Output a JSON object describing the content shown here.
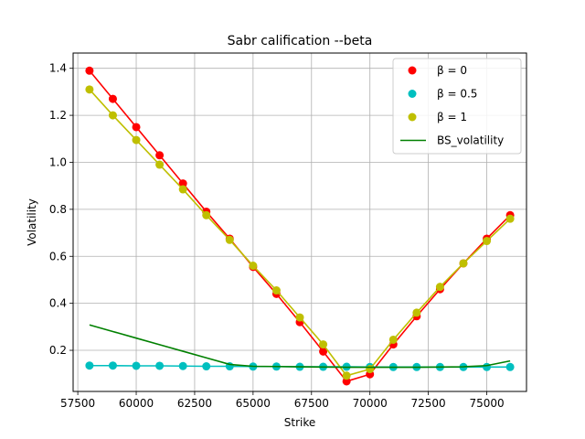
{
  "chart_data": {
    "type": "line",
    "title": "Sabr calification --beta",
    "xlabel": "Strike",
    "ylabel": "Volatility",
    "xlim": [
      57300,
      76700
    ],
    "ylim": [
      0.025,
      1.465
    ],
    "xticks": [
      57500,
      60000,
      62500,
      65000,
      67500,
      70000,
      72500,
      75000
    ],
    "xtick_labels": [
      "57500",
      "60000",
      "62500",
      "65000",
      "67500",
      "70000",
      "72500",
      "75000"
    ],
    "yticks": [
      0.2,
      0.4,
      0.6,
      0.8,
      1.0,
      1.2,
      1.4
    ],
    "ytick_labels": [
      "0.2",
      "0.4",
      "0.6",
      "0.8",
      "1.0",
      "1.2",
      "1.4"
    ],
    "grid": true,
    "legend_position": "top-right",
    "x": [
      58000,
      59000,
      60000,
      61000,
      62000,
      63000,
      64000,
      65000,
      66000,
      67000,
      68000,
      69000,
      70000,
      71000,
      72000,
      73000,
      74000,
      75000,
      76000
    ],
    "series": [
      {
        "name": "β = 0",
        "color": "#ff0000",
        "marker": true,
        "values": [
          1.39,
          1.27,
          1.15,
          1.03,
          0.91,
          0.79,
          0.675,
          0.555,
          0.44,
          0.32,
          0.195,
          0.068,
          0.098,
          0.225,
          0.345,
          0.46,
          0.57,
          0.675,
          0.775
        ]
      },
      {
        "name": "β = 0.5",
        "color": "#00bfbf",
        "marker": true,
        "values": [
          0.135,
          0.135,
          0.134,
          0.134,
          0.133,
          0.132,
          0.132,
          0.131,
          0.131,
          0.13,
          0.13,
          0.13,
          0.129,
          0.129,
          0.129,
          0.129,
          0.129,
          0.129,
          0.129
        ]
      },
      {
        "name": "β = 1",
        "color": "#bfbf00",
        "marker": true,
        "values": [
          1.31,
          1.2,
          1.095,
          0.99,
          0.885,
          0.775,
          0.67,
          0.56,
          0.455,
          0.34,
          0.225,
          0.092,
          0.12,
          0.245,
          0.36,
          0.47,
          0.57,
          0.665,
          0.76
        ]
      },
      {
        "name": "BS_volatility",
        "color": "#008000",
        "marker": false,
        "values": [
          0.308,
          0.28,
          0.252,
          0.224,
          0.196,
          0.168,
          0.14,
          0.132,
          0.131,
          0.13,
          0.129,
          0.128,
          0.128,
          0.128,
          0.128,
          0.129,
          0.13,
          0.135,
          0.155
        ]
      }
    ]
  }
}
